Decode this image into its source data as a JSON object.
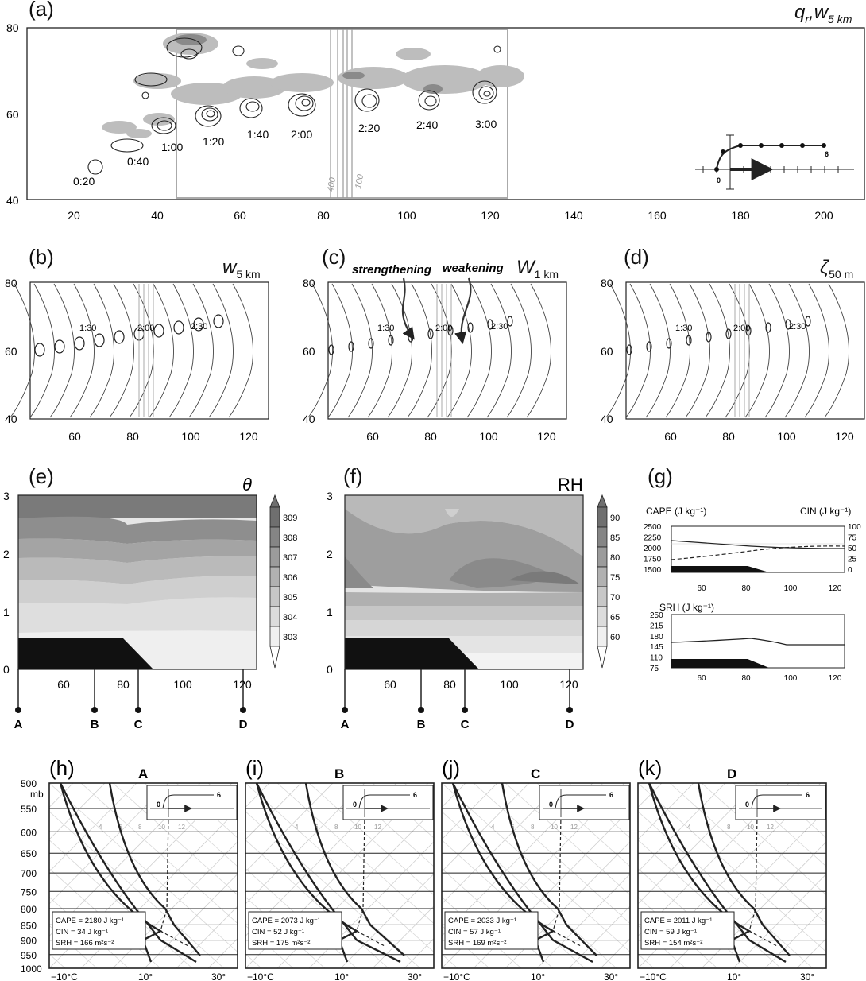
{
  "panels": {
    "a": {
      "label": "(a)",
      "title": "qr,w5 km",
      "yticks": [
        "80",
        "60",
        "40"
      ],
      "xticks": [
        "20",
        "40",
        "60",
        "80",
        "100",
        "120",
        "140",
        "160",
        "180",
        "200"
      ],
      "times": [
        "0:20",
        "0:40",
        "1:00",
        "1:20",
        "1:40",
        "2:00",
        "2:20",
        "2:40",
        "3:00"
      ],
      "contour_labels": [
        "400",
        "100"
      ],
      "inset_labels": [
        "0",
        "6"
      ]
    },
    "b": {
      "label": "(b)",
      "title": "w5 km",
      "time_labels": [
        "1:30",
        "2:00",
        "2:30"
      ]
    },
    "c": {
      "label": "(c)",
      "title": "W1 km",
      "annot_strengthening": "strengthening",
      "annot_weakening": "weakening",
      "time_labels": [
        "1:30",
        "2:00",
        "2:30"
      ]
    },
    "d": {
      "label": "(d)",
      "title": "ζ50 m",
      "time_labels": [
        "1:30",
        "2:00",
        "2:30"
      ]
    },
    "bcd_yticks": [
      "80",
      "60",
      "40"
    ],
    "bcd_xticks": [
      "60",
      "80",
      "100",
      "120"
    ],
    "e": {
      "label": "(e)",
      "title": "θ",
      "yticks": [
        "3",
        "2",
        "1",
        "0"
      ],
      "xticks": [
        "60",
        "80",
        "100",
        "120"
      ],
      "colorbar": [
        "309",
        "308",
        "307",
        "306",
        "305",
        "304",
        "303"
      ],
      "stations": [
        "A",
        "B",
        "C",
        "D"
      ]
    },
    "f": {
      "label": "(f)",
      "title": "RH",
      "yticks": [
        "3",
        "2",
        "1",
        "0"
      ],
      "xticks": [
        "60",
        "80",
        "100",
        "120"
      ],
      "colorbar": [
        "90",
        "85",
        "80",
        "75",
        "70",
        "65",
        "60"
      ],
      "stations": [
        "A",
        "B",
        "C",
        "D"
      ]
    },
    "g": {
      "label": "(g)",
      "cape_label": "CAPE (J kg⁻¹)",
      "cin_label": "CIN (J kg⁻¹)",
      "srh_label": "SRH (J kg⁻¹)",
      "cape_ticks": [
        "2500",
        "2250",
        "2000",
        "1750",
        "1500"
      ],
      "cin_ticks": [
        "100",
        "75",
        "50",
        "25",
        "0"
      ],
      "srh_ticks": [
        "250",
        "215",
        "180",
        "145",
        "110",
        "75"
      ],
      "xticks": [
        "60",
        "80",
        "100",
        "120"
      ]
    },
    "soundings": [
      {
        "label": "(h)",
        "station": "A",
        "cape": "CAPE = 2180 J kg⁻¹",
        "cin": "CIN = 34 J kg⁻¹",
        "srh": "SRH = 166 m²s⁻²"
      },
      {
        "label": "(i)",
        "station": "B",
        "cape": "CAPE = 2073 J kg⁻¹",
        "cin": "CIN = 52 J kg⁻¹",
        "srh": "SRH = 175 m²s⁻²"
      },
      {
        "label": "(j)",
        "station": "C",
        "cape": "CAPE = 2033 J kg⁻¹",
        "cin": "CIN = 57 J kg⁻¹",
        "srh": "SRH = 169 m²s⁻²"
      },
      {
        "label": "(k)",
        "station": "D",
        "cape": "CAPE = 2011 J kg⁻¹",
        "cin": "CIN = 59 J kg⁻¹",
        "srh": "SRH = 154 m²s⁻²"
      }
    ],
    "skewt_pressure": [
      "500",
      "mb",
      "550",
      "600",
      "650",
      "700",
      "750",
      "800",
      "850",
      "900",
      "950",
      "1000"
    ],
    "skewt_temp": [
      "−10°C",
      "10°",
      "30°"
    ],
    "skewt_mixing": [
      "4",
      "6",
      "8",
      "10",
      "12"
    ],
    "hodo_labels": [
      "0",
      "6"
    ]
  },
  "colors": {
    "shade_dark": "#777777",
    "terrain": "#111111",
    "grid": "#bbbbbb"
  }
}
